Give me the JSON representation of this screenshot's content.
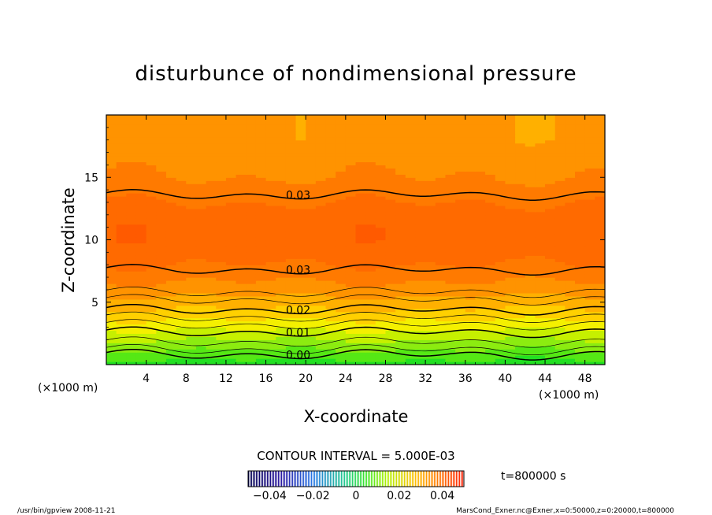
{
  "chart_data": {
    "type": "heatmap",
    "title": "disturbunce of nondimensional pressure",
    "xlabel": "X-coordinate",
    "ylabel": "Z-coordinate",
    "x_unit": "(×1000 m)",
    "y_unit": "(×1000 m)",
    "xlim": [
      0,
      50
    ],
    "ylim": [
      0,
      20
    ],
    "x_ticks": [
      "4",
      "8",
      "12",
      "16",
      "20",
      "24",
      "28",
      "32",
      "36",
      "40",
      "44",
      "48"
    ],
    "y_ticks": [
      "5",
      "10",
      "15"
    ],
    "contour_interval_label": "CONTOUR INTERVAL = 5.000E-03",
    "contour_labels": [
      {
        "text": "0.03",
        "x": 17.5,
        "z": 13.6
      },
      {
        "text": "0.03",
        "x": 17.5,
        "z": 7.6
      },
      {
        "text": "0.02",
        "x": 17.5,
        "z": 4.4
      },
      {
        "text": "0.01",
        "x": 17.5,
        "z": 2.6
      },
      {
        "text": "0.00",
        "x": 17.5,
        "z": 0.8
      }
    ],
    "colorbar_ticks": [
      "−0.04",
      "−0.02",
      "0",
      "0.02",
      "0.04"
    ],
    "colorbar_range": [
      -0.05,
      0.05
    ],
    "field_profile": {
      "z": [
        0,
        1,
        2,
        3,
        4,
        5,
        6,
        7,
        8,
        9,
        10,
        11,
        12,
        13,
        14,
        15,
        16,
        17,
        18,
        19,
        20
      ],
      "value": [
        -0.003,
        0.002,
        0.007,
        0.012,
        0.017,
        0.021,
        0.025,
        0.028,
        0.031,
        0.033,
        0.034,
        0.034,
        0.033,
        0.031,
        0.029,
        0.027,
        0.026,
        0.025,
        0.024,
        0.024,
        0.024
      ]
    },
    "colors": {
      "field": [
        "#22e022",
        "#55e815",
        "#8cec10",
        "#c6f000",
        "#f4f000",
        "#ffd000",
        "#ffb000",
        "#ff9300",
        "#ff7a00",
        "#ff6a00",
        "#ff5a00"
      ],
      "colorbar_low": "#000060",
      "colorbar_high": "#ff2000"
    }
  },
  "annotations": {
    "time": "t=800000 s",
    "footer_left": "/usr/bin/gpview   2008-11-21",
    "footer_right": "MarsCond_Exner.nc@Exner,x=0:50000,z=0:20000,t=800000"
  }
}
